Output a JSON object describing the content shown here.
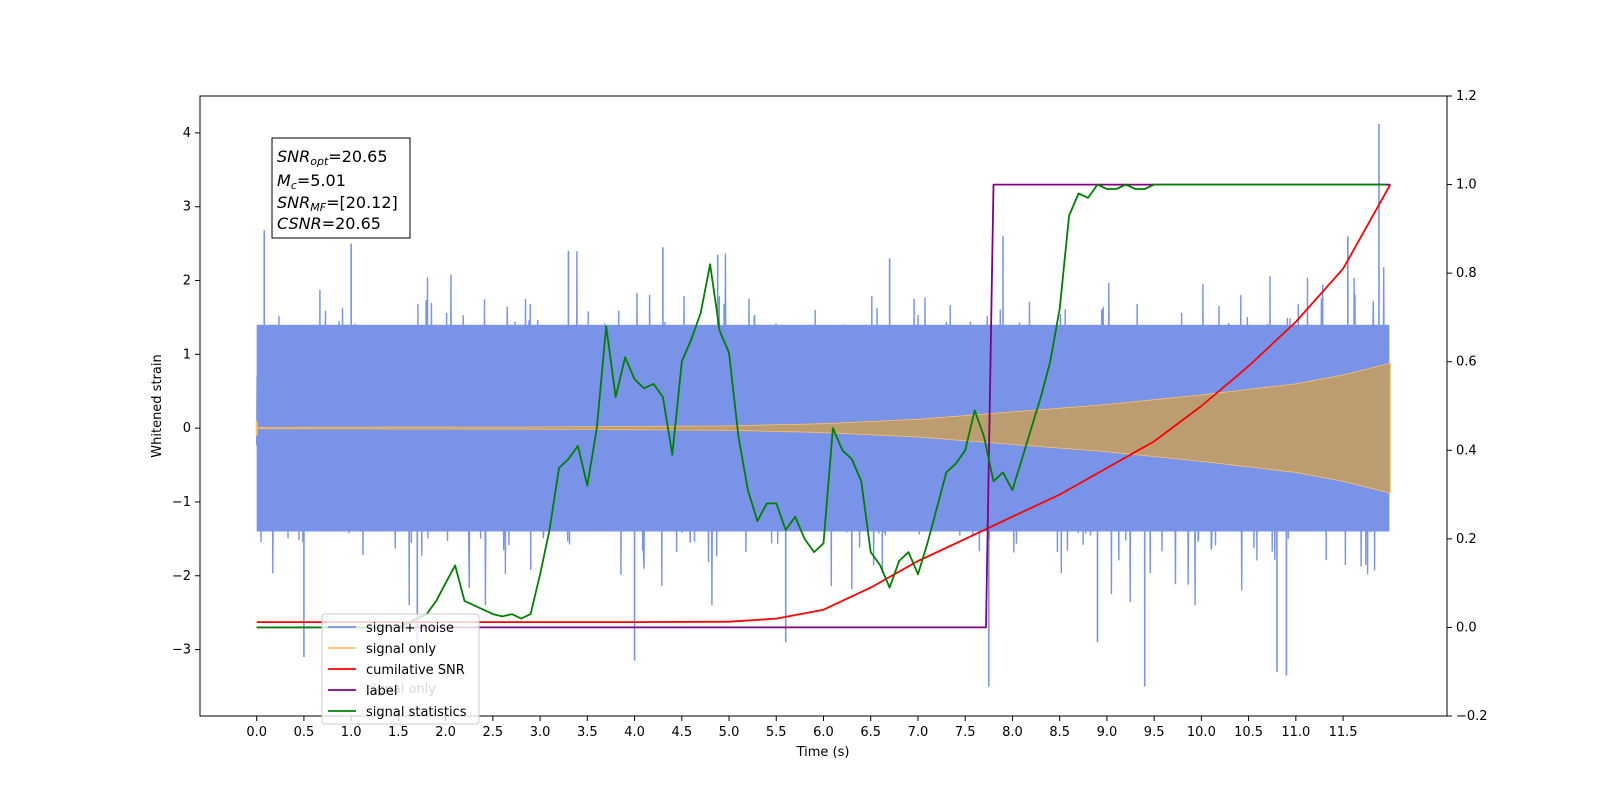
{
  "chart_data": {
    "type": "line",
    "xlabel": "Time (s)",
    "ylabel_left": "Whitened strain",
    "ylabel_right": "",
    "xlim": [
      -0.6,
      12.6
    ],
    "ylim_left": [
      -3.9,
      4.5
    ],
    "ylim_right": [
      -0.2,
      1.2
    ],
    "x_ticks": [
      0.0,
      0.5,
      1.0,
      1.5,
      2.0,
      2.5,
      3.0,
      3.5,
      4.0,
      4.5,
      5.0,
      5.5,
      6.0,
      6.5,
      7.0,
      7.5,
      8.0,
      8.5,
      9.0,
      9.5,
      10.0,
      10.5,
      11.0,
      11.5
    ],
    "x_tick_labels": [
      "0.0",
      "0.5",
      "1.0",
      "1.5",
      "2.0",
      "2.5",
      "3.0",
      "3.5",
      "4.0",
      "4.5",
      "5.0",
      "5.5",
      "6.0",
      "6.5",
      "7.0",
      "7.5",
      "8.0",
      "8.5",
      "9.0",
      "9.5",
      "10.0",
      "10.5",
      "11.0",
      "11.5"
    ],
    "y_ticks_left": [
      -3,
      -2,
      -1,
      0,
      1,
      2,
      3,
      4
    ],
    "y_tick_labels_left": [
      "−3",
      "−2",
      "−1",
      "0",
      "1",
      "2",
      "3",
      "4"
    ],
    "y_ticks_right": [
      -0.2,
      0.0,
      0.2,
      0.4,
      0.6,
      0.8,
      1.0,
      1.2
    ],
    "y_tick_labels_right": [
      "−0.2",
      "0.0",
      "0.2",
      "0.4",
      "0.6",
      "0.8",
      "1.0",
      "1.2"
    ],
    "grid": false,
    "legend_placement": "lower-left",
    "legend": [
      {
        "name": "signal+ noise",
        "color": "#7893e8"
      },
      {
        "name": "signal only",
        "color": "#ffc166"
      },
      {
        "name": "cumilative SNR",
        "color": "#ff0000"
      },
      {
        "name": "label",
        "color": "#800080"
      },
      {
        "name": "signal statistics",
        "color": "#008000"
      }
    ],
    "hidden_legend_text": "signal only",
    "annotation": {
      "snr_opt_label": "SNR",
      "snr_opt_sub": "opt",
      "snr_opt_value": "=20.65",
      "mc_label": "M",
      "mc_sub": "c",
      "mc_value": "=5.01",
      "snr_mf_label": "SNR",
      "snr_mf_sub": "MF",
      "snr_mf_value": "=[20.12]",
      "csnr_label": "CSNR",
      "csnr_value": "=20.65"
    },
    "series": [
      {
        "name": "signal+ noise",
        "axis": "left",
        "color": "#7893e8",
        "kind": "noise",
        "t_range": [
          0.0,
          11.99
        ],
        "band": [
          -1.4,
          1.4
        ],
        "peaks": [
          {
            "x": 11.88,
            "y": 4.12
          },
          {
            "x": 0.08,
            "y": 2.68
          },
          {
            "x": 4.88,
            "y": 2.35
          },
          {
            "x": 0.5,
            "y": -3.1
          },
          {
            "x": 4.0,
            "y": -3.15
          },
          {
            "x": 7.75,
            "y": -3.5
          },
          {
            "x": 9.4,
            "y": -3.5
          },
          {
            "x": 10.9,
            "y": -3.35
          },
          {
            "x": 10.8,
            "y": -3.3
          },
          {
            "x": 1.0,
            "y": 2.5
          },
          {
            "x": 4.3,
            "y": 2.45
          },
          {
            "x": 6.7,
            "y": 2.3
          },
          {
            "x": 7.9,
            "y": 2.6
          },
          {
            "x": 11.55,
            "y": 2.6
          },
          {
            "x": 1.7,
            "y": -3.0
          },
          {
            "x": 5.6,
            "y": -2.9
          },
          {
            "x": 8.9,
            "y": -2.9
          },
          {
            "x": 3.3,
            "y": 2.4
          }
        ]
      },
      {
        "name": "signal only",
        "axis": "left",
        "color": "#ffc166",
        "kind": "chirp",
        "t_range": [
          0.0,
          12.0
        ],
        "envelope": [
          [
            0.0,
            0.01
          ],
          [
            3.0,
            0.015
          ],
          [
            5.0,
            0.03
          ],
          [
            6.0,
            0.06
          ],
          [
            7.0,
            0.12
          ],
          [
            8.0,
            0.22
          ],
          [
            9.0,
            0.32
          ],
          [
            10.0,
            0.45
          ],
          [
            11.0,
            0.6
          ],
          [
            11.5,
            0.72
          ],
          [
            12.0,
            0.88
          ]
        ]
      },
      {
        "name": "cumilative SNR",
        "axis": "right",
        "color": "#ff0000",
        "x": [
          0.0,
          1.0,
          2.0,
          3.0,
          4.0,
          5.0,
          5.5,
          6.0,
          6.5,
          7.0,
          7.5,
          8.0,
          8.5,
          9.0,
          9.5,
          10.0,
          10.5,
          11.0,
          11.5,
          12.0
        ],
        "y": [
          0.012,
          0.012,
          0.012,
          0.012,
          0.012,
          0.013,
          0.02,
          0.04,
          0.09,
          0.15,
          0.2,
          0.25,
          0.3,
          0.36,
          0.42,
          0.5,
          0.59,
          0.69,
          0.81,
          1.0
        ]
      },
      {
        "name": "label",
        "axis": "right",
        "color": "#800080",
        "x": [
          0.0,
          7.72,
          7.8,
          12.0
        ],
        "y": [
          0.0,
          0.0,
          1.0,
          1.0
        ]
      },
      {
        "name": "signal statistics",
        "axis": "right",
        "color": "#008000",
        "x": [
          0.0,
          1.5,
          1.8,
          1.9,
          2.0,
          2.1,
          2.2,
          2.3,
          2.4,
          2.5,
          2.6,
          2.7,
          2.8,
          2.9,
          3.0,
          3.1,
          3.2,
          3.3,
          3.4,
          3.5,
          3.6,
          3.7,
          3.8,
          3.9,
          4.0,
          4.1,
          4.2,
          4.3,
          4.4,
          4.5,
          4.6,
          4.7,
          4.8,
          4.9,
          5.0,
          5.1,
          5.2,
          5.3,
          5.4,
          5.5,
          5.6,
          5.7,
          5.8,
          5.9,
          6.0,
          6.1,
          6.2,
          6.3,
          6.4,
          6.5,
          6.6,
          6.7,
          6.8,
          6.9,
          7.0,
          7.1,
          7.2,
          7.3,
          7.4,
          7.5,
          7.6,
          7.7,
          7.8,
          7.9,
          8.0,
          8.1,
          8.2,
          8.3,
          8.4,
          8.5,
          8.6,
          8.7,
          8.8,
          8.9,
          9.0,
          9.1,
          9.2,
          9.3,
          9.4,
          9.5,
          9.6,
          9.7,
          9.8,
          10.0,
          11.0,
          11.95
        ],
        "y": [
          0.0,
          0.0,
          0.03,
          0.06,
          0.1,
          0.14,
          0.06,
          0.05,
          0.04,
          0.03,
          0.025,
          0.03,
          0.02,
          0.03,
          0.12,
          0.22,
          0.36,
          0.38,
          0.41,
          0.32,
          0.45,
          0.68,
          0.52,
          0.61,
          0.56,
          0.54,
          0.55,
          0.52,
          0.39,
          0.6,
          0.65,
          0.71,
          0.82,
          0.67,
          0.62,
          0.43,
          0.31,
          0.24,
          0.28,
          0.28,
          0.22,
          0.25,
          0.2,
          0.17,
          0.19,
          0.45,
          0.4,
          0.38,
          0.33,
          0.17,
          0.14,
          0.09,
          0.15,
          0.17,
          0.12,
          0.19,
          0.27,
          0.35,
          0.37,
          0.4,
          0.49,
          0.43,
          0.33,
          0.35,
          0.31,
          0.38,
          0.45,
          0.52,
          0.6,
          0.72,
          0.93,
          0.98,
          0.97,
          1.0,
          0.99,
          0.99,
          1.0,
          0.99,
          0.99,
          1.0,
          1.0,
          1.0,
          1.0,
          1.0,
          1.0,
          1.0
        ]
      }
    ]
  }
}
